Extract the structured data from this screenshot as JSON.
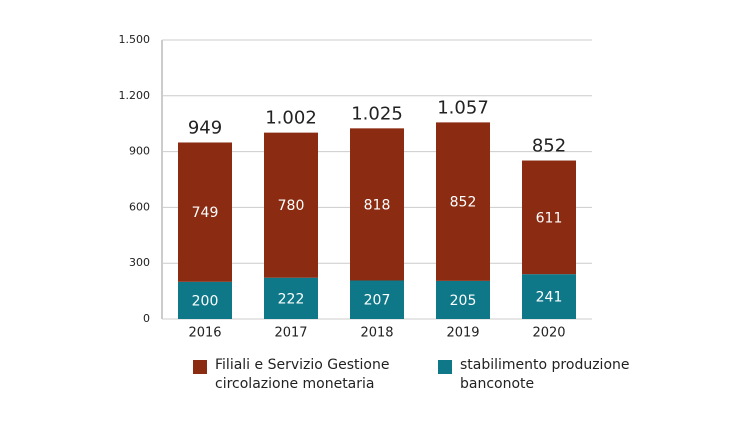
{
  "chart_data": {
    "type": "stacked_bar",
    "categories": [
      "2016",
      "2017",
      "2018",
      "2019",
      "2020"
    ],
    "series": [
      {
        "name": "stabilimento produzione banconote",
        "color": "#0e7889",
        "values": [
          200,
          222,
          207,
          205,
          241
        ]
      },
      {
        "name": "Filiali e Servizio Gestione circolazione monetaria",
        "color": "#8a2b12",
        "values": [
          749,
          780,
          818,
          852,
          611
        ]
      }
    ],
    "totals": {
      "values": [
        949,
        1002,
        1025,
        1057,
        852
      ],
      "value_labels": [
        "949",
        "1.002",
        "1.025",
        "1.057",
        "852"
      ]
    },
    "ylim": [
      0,
      1500
    ],
    "yticks": [
      0,
      300,
      600,
      900,
      {
        "value": 1200,
        "label": "1.200"
      },
      {
        "value": 1500,
        "label": "1.500"
      }
    ],
    "grid": true
  }
}
